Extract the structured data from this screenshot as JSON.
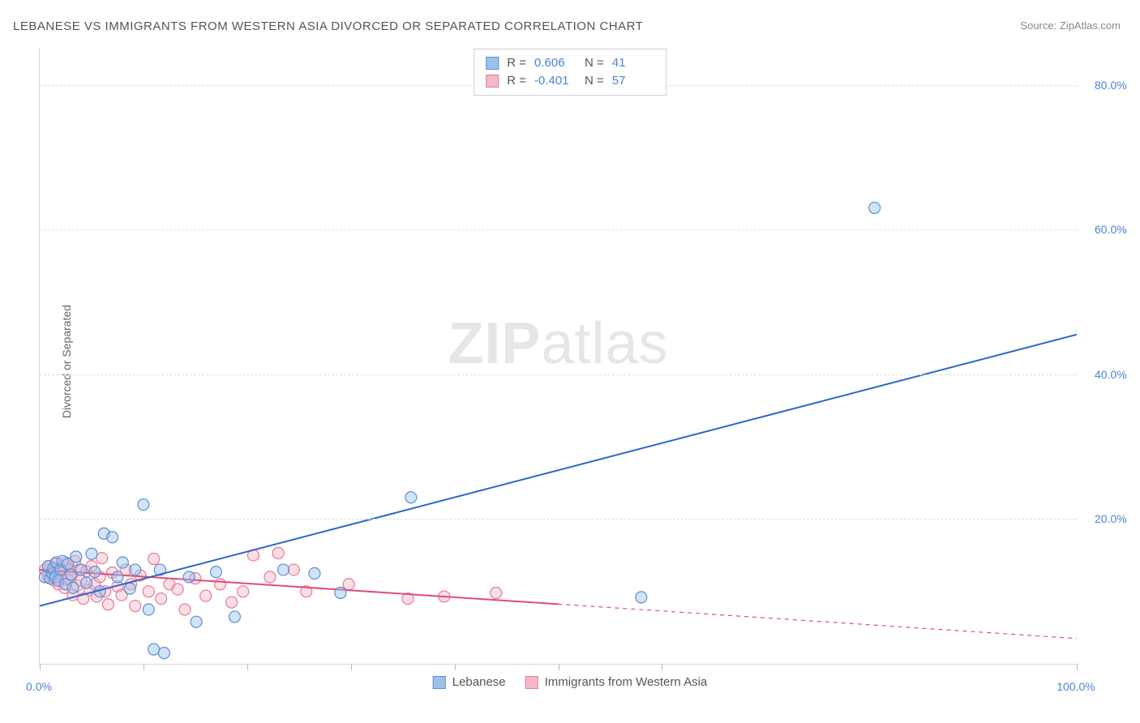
{
  "meta": {
    "title": "LEBANESE VS IMMIGRANTS FROM WESTERN ASIA DIVORCED OR SEPARATED CORRELATION CHART",
    "source_label": "Source:",
    "source_name": "ZipAtlas.com",
    "y_axis_label": "Divorced or Separated",
    "watermark_zip": "ZIP",
    "watermark_atlas": "atlas"
  },
  "chart": {
    "type": "scatter-with-trendlines",
    "background_color": "#ffffff",
    "grid_color": "#dcdcdc",
    "axis_color": "#d8d8d8",
    "tick_label_color": "#4a83d6",
    "xlim": [
      0,
      100
    ],
    "ylim": [
      0,
      85
    ],
    "x_ticks": [
      0,
      10,
      20,
      30,
      40,
      50,
      60,
      100
    ],
    "x_tick_labels": {
      "0": "0.0%",
      "100": "100.0%"
    },
    "y_ticks": [
      20,
      40,
      60,
      80
    ],
    "y_tick_labels": {
      "20": "20.0%",
      "40": "40.0%",
      "60": "60.0%",
      "80": "80.0%"
    },
    "point_radius": 7,
    "point_fill_opacity": 0.45,
    "point_stroke_width": 1.2,
    "trend_line_width": 2
  },
  "series": {
    "lebanese": {
      "label": "Lebanese",
      "color_fill": "#9ec1ea",
      "color_stroke": "#5b8fd6",
      "trend_color": "#2a63c9",
      "R": "0.606",
      "N": "41",
      "trend_line": {
        "x1": 0,
        "y1": 8.0,
        "x2": 100,
        "y2": 45.5
      },
      "trend_solid_until_x": 100,
      "points": [
        [
          0.5,
          12.0
        ],
        [
          0.8,
          13.5
        ],
        [
          1.0,
          11.8
        ],
        [
          1.2,
          12.5
        ],
        [
          1.3,
          13.2
        ],
        [
          1.5,
          12.0
        ],
        [
          1.6,
          14.0
        ],
        [
          1.8,
          11.5
        ],
        [
          2.0,
          13.0
        ],
        [
          2.2,
          14.2
        ],
        [
          2.5,
          11.0
        ],
        [
          2.7,
          13.8
        ],
        [
          3.0,
          12.3
        ],
        [
          3.2,
          10.5
        ],
        [
          3.5,
          14.8
        ],
        [
          4.0,
          13.0
        ],
        [
          4.5,
          11.2
        ],
        [
          5.0,
          15.2
        ],
        [
          5.3,
          12.7
        ],
        [
          5.8,
          10.0
        ],
        [
          6.2,
          18.0
        ],
        [
          7.0,
          17.5
        ],
        [
          7.5,
          12.0
        ],
        [
          8.0,
          14.0
        ],
        [
          8.7,
          10.4
        ],
        [
          9.2,
          13.0
        ],
        [
          10.0,
          22.0
        ],
        [
          10.5,
          7.5
        ],
        [
          11.0,
          2.0
        ],
        [
          11.6,
          13.0
        ],
        [
          12.0,
          1.5
        ],
        [
          14.4,
          12.0
        ],
        [
          15.1,
          5.8
        ],
        [
          17.0,
          12.7
        ],
        [
          18.8,
          6.5
        ],
        [
          23.5,
          13.0
        ],
        [
          26.5,
          12.5
        ],
        [
          29.0,
          9.8
        ],
        [
          35.8,
          23.0
        ],
        [
          58.0,
          9.2
        ],
        [
          80.5,
          63.0
        ]
      ]
    },
    "western_asia": {
      "label": "Immigrants from Western Asia",
      "color_fill": "#f5b9c8",
      "color_stroke": "#e77a9a",
      "trend_color": "#e24d76",
      "R": "-0.401",
      "N": "57",
      "trend_line": {
        "x1": 0,
        "y1": 13.0,
        "x2": 100,
        "y2": 3.5
      },
      "trend_solid_until_x": 50,
      "points": [
        [
          0.5,
          13.0
        ],
        [
          0.8,
          12.0
        ],
        [
          1.0,
          13.5
        ],
        [
          1.2,
          12.2
        ],
        [
          1.4,
          11.5
        ],
        [
          1.5,
          13.8
        ],
        [
          1.7,
          12.6
        ],
        [
          1.8,
          11.0
        ],
        [
          2.0,
          13.2
        ],
        [
          2.2,
          12.0
        ],
        [
          2.4,
          10.5
        ],
        [
          2.5,
          14.0
        ],
        [
          2.7,
          11.7
        ],
        [
          2.9,
          13.0
        ],
        [
          3.0,
          12.4
        ],
        [
          3.2,
          9.5
        ],
        [
          3.4,
          14.2
        ],
        [
          3.6,
          10.8
        ],
        [
          3.8,
          13.0
        ],
        [
          4.0,
          11.5
        ],
        [
          4.2,
          9.0
        ],
        [
          4.5,
          12.8
        ],
        [
          4.8,
          10.2
        ],
        [
          5.0,
          13.5
        ],
        [
          5.3,
          11.0
        ],
        [
          5.5,
          9.3
        ],
        [
          5.8,
          12.0
        ],
        [
          6.0,
          14.6
        ],
        [
          6.3,
          10.0
        ],
        [
          6.6,
          8.2
        ],
        [
          7.0,
          12.6
        ],
        [
          7.5,
          10.7
        ],
        [
          7.9,
          9.5
        ],
        [
          8.3,
          13.0
        ],
        [
          8.8,
          11.0
        ],
        [
          9.2,
          8.0
        ],
        [
          9.7,
          12.2
        ],
        [
          10.5,
          10.0
        ],
        [
          11.0,
          14.5
        ],
        [
          11.7,
          9.0
        ],
        [
          12.5,
          11.0
        ],
        [
          13.3,
          10.3
        ],
        [
          14.0,
          7.5
        ],
        [
          15.0,
          11.8
        ],
        [
          16.0,
          9.4
        ],
        [
          17.4,
          11.0
        ],
        [
          18.5,
          8.5
        ],
        [
          19.6,
          10.0
        ],
        [
          20.6,
          15.0
        ],
        [
          22.2,
          12.0
        ],
        [
          23.0,
          15.3
        ],
        [
          24.5,
          13.0
        ],
        [
          25.7,
          10.0
        ],
        [
          29.8,
          11.0
        ],
        [
          35.5,
          9.0
        ],
        [
          39.0,
          9.3
        ],
        [
          44.0,
          9.8
        ]
      ]
    }
  },
  "legend": {
    "R_label": "R  =",
    "N_label": "N  ="
  }
}
